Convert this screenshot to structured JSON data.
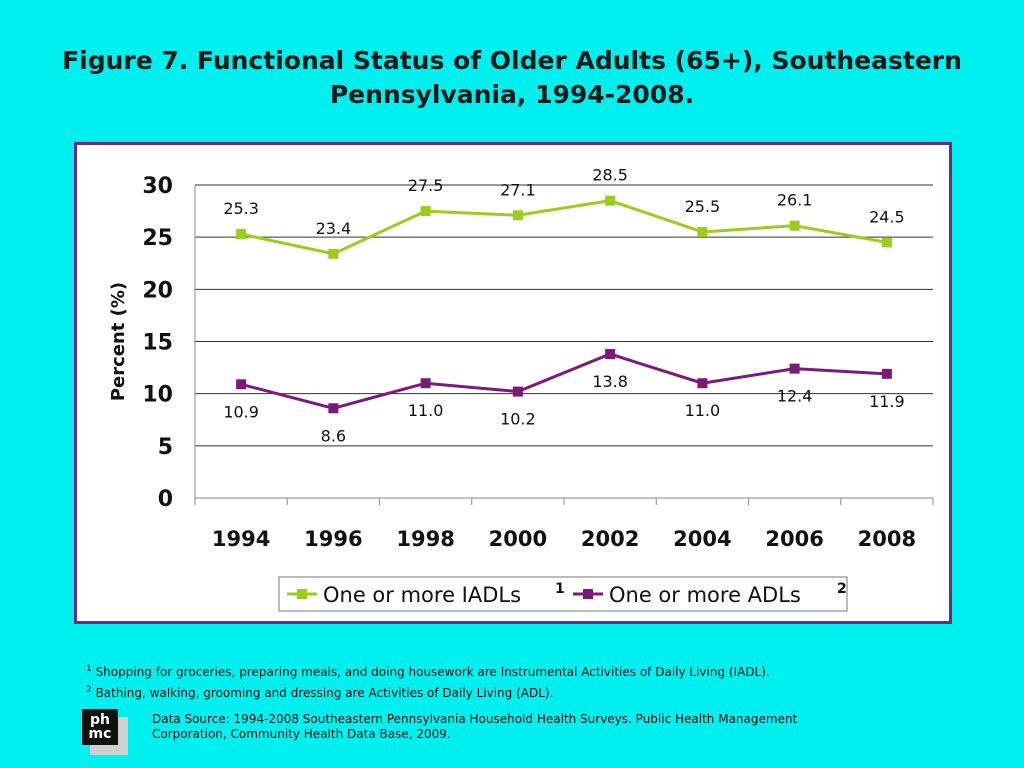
{
  "title": "Figure 7. Functional Status of Older Adults (65+), Southeastern Pennsylvania, 1994-2008.",
  "chart_data": {
    "type": "line",
    "categories": [
      "1994",
      "1996",
      "1998",
      "2000",
      "2002",
      "2004",
      "2006",
      "2008"
    ],
    "series": [
      {
        "name": "One or more IADLs",
        "superscript": "1",
        "color": "#9acd1e",
        "values": [
          25.3,
          23.4,
          27.5,
          27.1,
          28.5,
          25.5,
          26.1,
          24.5
        ],
        "labels": [
          "25.3",
          "23.4",
          "27.5",
          "27.1",
          "28.5",
          "25.5",
          "26.1",
          "24.5"
        ]
      },
      {
        "name": "One or more ADLs",
        "superscript": "2",
        "color": "#7a1a7a",
        "values": [
          10.9,
          8.6,
          11.0,
          10.2,
          13.8,
          11.0,
          12.4,
          11.9
        ],
        "labels": [
          "10.9",
          "8.6",
          "11.0",
          "10.2",
          "13.8",
          "11.0",
          "12.4",
          "11.9"
        ]
      }
    ],
    "ylabel": "Percent (%)",
    "xlabel": "",
    "ylim": [
      0,
      30
    ],
    "yticks": [
      "0",
      "5",
      "10",
      "15",
      "20",
      "25",
      "30"
    ],
    "grid": true,
    "legend": "bottom"
  },
  "footnotes": [
    {
      "mark": "1",
      "text": "Shopping for groceries, preparing meals, and doing housework are Instrumental Activities of Daily Living (IADL)."
    },
    {
      "mark": "2",
      "text": "Bathing, walking, grooming and dressing are Activities of Daily Living (ADL)."
    }
  ],
  "source": "Data Source: 1994-2008 Southeastern Pennsylvania Household Health Surveys. Public Health Management Corporation, Community Health Data Base, 2009.",
  "logo": {
    "line1": "ph",
    "line2": "mc"
  }
}
